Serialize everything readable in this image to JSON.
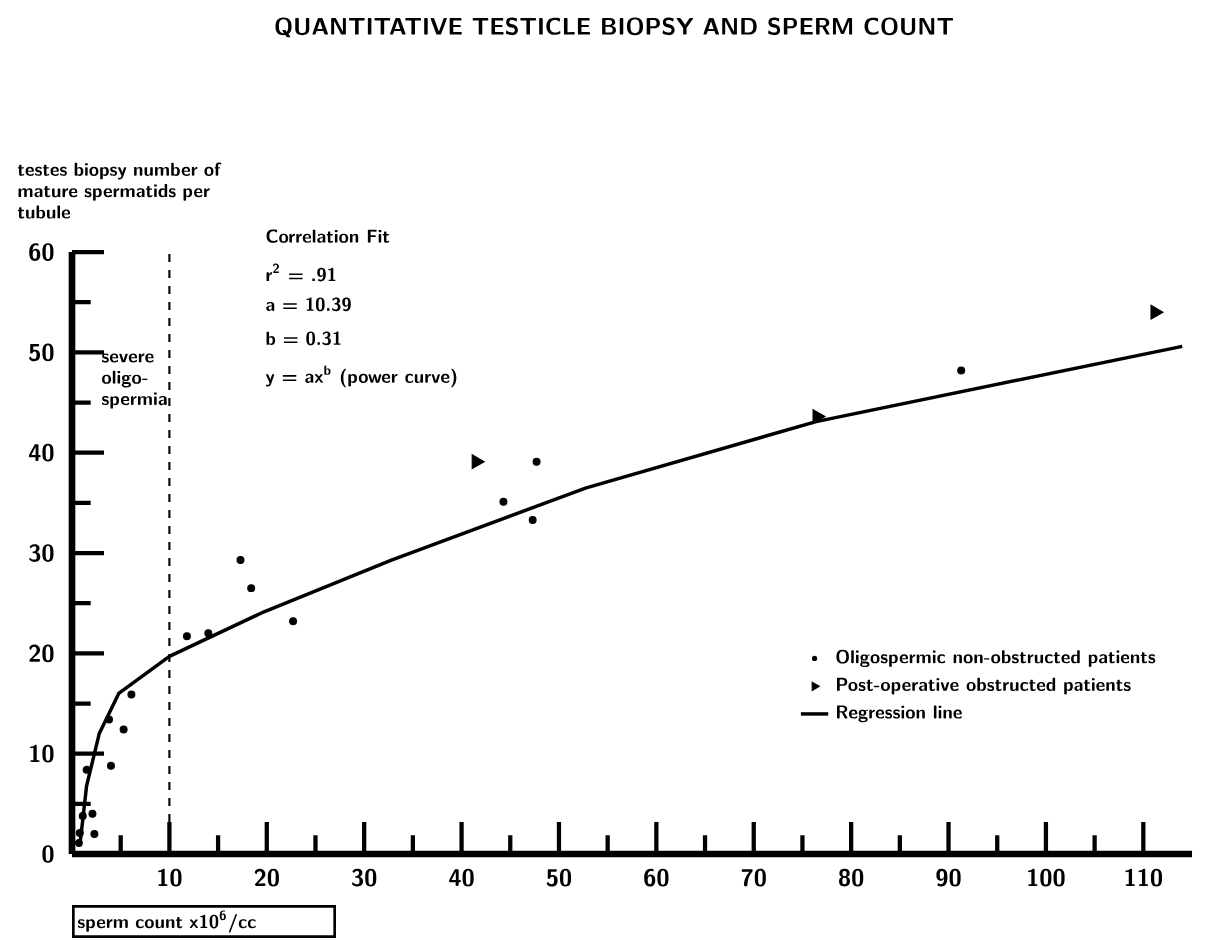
{
  "chart_data": {
    "type": "scatter",
    "title": "QUANTITATIVE TESTICLE BIOPSY AND SPERM COUNT",
    "xlabel": "sperm count x10$^{6}$/cc",
    "ylabel": "testes biopsy number of mature spermatids per tubule",
    "annotations": [
      "severe oligo- spermia",
      "Correlation Fit",
      "r$^{2}$ = .91",
      "a = 10.39",
      "b = 0.31",
      "y = ax$^{b}$ (power curve)"
    ],
    "xlim": [
      0,
      115
    ],
    "ylim": [
      0,
      60
    ],
    "xticks": [
      {
        "value": 5,
        "label": null
      },
      10,
      {
        "value": 15,
        "label": null
      },
      20,
      {
        "value": 25,
        "label": null
      },
      30,
      {
        "value": 35,
        "label": null
      },
      40,
      {
        "value": 45,
        "label": null
      },
      50,
      {
        "value": 55,
        "label": null
      },
      60,
      {
        "value": 65,
        "label": null
      },
      70,
      {
        "value": 75,
        "label": null
      },
      80,
      {
        "value": 85,
        "label": null
      },
      90,
      {
        "value": 95,
        "label": null
      },
      100,
      {
        "value": 105,
        "label": null
      },
      110
    ],
    "yticks": [
      0,
      {
        "value": 5,
        "label": null
      },
      10,
      {
        "value": 15,
        "label": null
      },
      20,
      {
        "value": 25,
        "label": null
      },
      30,
      {
        "value": 35,
        "label": null
      },
      40,
      {
        "value": 45,
        "label": null
      },
      50,
      {
        "value": 55,
        "label": null
      },
      60
    ],
    "ref_lines": [
      {
        "axis": "x",
        "value": 10,
        "line_style": "dashed"
      }
    ],
    "legend": "bottom right",
    "series": [
      {
        "name": "Oligospermic non-obstructed patients",
        "marker": "circle",
        "color": "#000000",
        "x": [
          0.7,
          0.8,
          1.1,
          1.5,
          2.1,
          2.3,
          3.8,
          4.0,
          5.3,
          6.1,
          11.8,
          14,
          17.3,
          18.4,
          22.7,
          44.3,
          47.3,
          47.7,
          91.3
        ],
        "values": [
          1.1,
          2.1,
          3.8,
          8.4,
          4.0,
          2.0,
          13.4,
          8.8,
          12.4,
          15.9,
          21.7,
          22,
          29.3,
          26.5,
          23.2,
          35.1,
          33.3,
          39.1,
          48.2
        ]
      },
      {
        "name": "Post-operative obstructed patients",
        "marker": "triangle",
        "color": "#000000",
        "x": [
          41.5,
          76.5,
          111.2
        ],
        "values": [
          39.1,
          43.6,
          54.0
        ]
      },
      {
        "name": "Regression line",
        "type": "line",
        "marker": "none",
        "color": "#000000",
        "x": [
          0.8,
          1.5,
          2.8,
          4.8,
          10,
          19.4,
          32.8,
          52.8,
          76.4,
          114
        ],
        "values": [
          0.8,
          6.8,
          12,
          16,
          19.7,
          24,
          29.3,
          36.5,
          43.1,
          50.6
        ]
      }
    ]
  }
}
